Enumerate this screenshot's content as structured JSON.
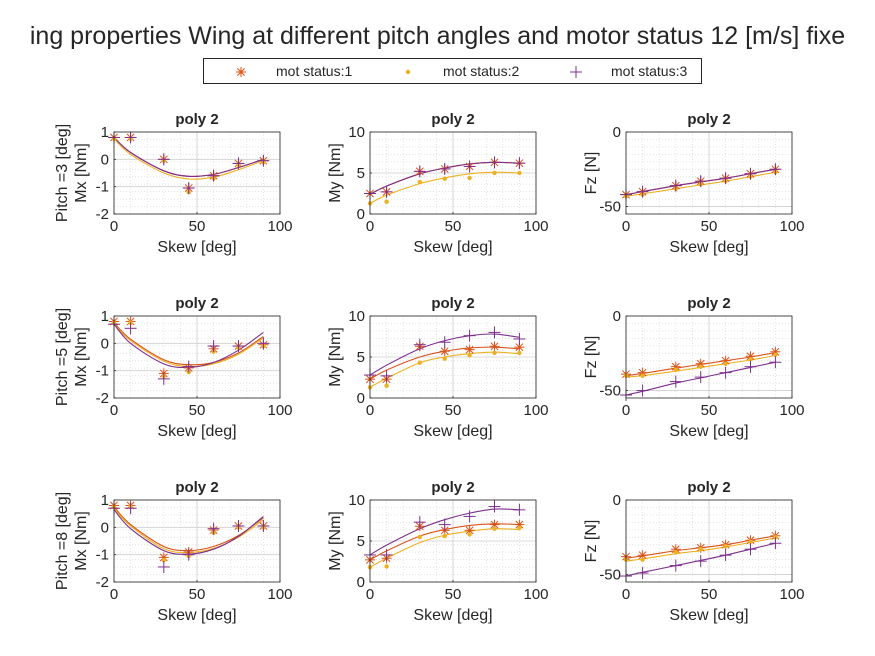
{
  "figure": {
    "title": "ing properties Wing at different pitch angles and motor status 12 [m/s] fixe"
  },
  "legend": {
    "entries": [
      "mot status:1",
      "mot status:2",
      "mot status:3"
    ]
  },
  "colors": {
    "mot_status_1": "#d95319",
    "mot_status_2": "#edb120",
    "mot_status_3": "#7e2f8e",
    "grid": "#d9d9d9",
    "axis": "#262626"
  },
  "markers": {
    "mot_status_1": "asterisk",
    "mot_status_2": "point",
    "mot_status_3": "plus"
  },
  "chart_data": [
    {
      "type": "scatter",
      "title": "poly 2",
      "xlabel": "Skew [deg]",
      "ylabel": "Pitch =3 [deg]\nMx [Nm]",
      "xlim": [
        0,
        100
      ],
      "ylim": [
        -2,
        1
      ],
      "xticks": [
        0,
        50,
        100
      ],
      "yticks": [
        -2,
        -1,
        0,
        1
      ],
      "x": [
        0,
        10,
        30,
        45,
        60,
        75,
        90
      ],
      "series": [
        {
          "name": "mot status:1",
          "values": [
            0.8,
            0.8,
            0,
            -1.05,
            -0.6,
            -0.15,
            -0.05
          ],
          "fit": [
            0.8,
            0.25,
            -0.42,
            -0.62,
            -0.55,
            -0.3,
            0.0
          ]
        },
        {
          "name": "mot status:2",
          "values": [
            0.75,
            0.75,
            -0.05,
            -1.2,
            -0.7,
            -0.2,
            -0.1
          ],
          "fit": [
            0.75,
            0.18,
            -0.5,
            -0.72,
            -0.65,
            -0.38,
            -0.05
          ]
        },
        {
          "name": "mot status:3",
          "values": [
            0.8,
            0.8,
            0,
            -1.05,
            -0.6,
            -0.15,
            -0.05
          ],
          "fit": [
            0.8,
            0.25,
            -0.42,
            -0.62,
            -0.55,
            -0.3,
            0.0
          ]
        }
      ]
    },
    {
      "type": "scatter",
      "title": "poly 2",
      "xlabel": "Skew [deg]",
      "ylabel": "My [Nm]",
      "xlim": [
        0,
        100
      ],
      "ylim": [
        0,
        10
      ],
      "xticks": [
        0,
        50,
        100
      ],
      "yticks": [
        0,
        5,
        10
      ],
      "x": [
        0,
        10,
        30,
        45,
        60,
        75,
        90
      ],
      "series": [
        {
          "name": "mot status:1",
          "values": [
            2.5,
            2.7,
            5.2,
            5.5,
            5.8,
            6.3,
            6.2
          ],
          "fit": [
            2.4,
            3.4,
            4.9,
            5.6,
            6.1,
            6.3,
            6.2
          ]
        },
        {
          "name": "mot status:2",
          "values": [
            1.3,
            1.5,
            3.9,
            4.3,
            4.4,
            5.0,
            5.0
          ],
          "fit": [
            1.3,
            2.3,
            3.7,
            4.4,
            4.9,
            5.1,
            5.0
          ]
        },
        {
          "name": "mot status:3",
          "values": [
            2.5,
            2.7,
            5.2,
            5.5,
            5.8,
            6.3,
            6.2
          ],
          "fit": [
            2.4,
            3.4,
            4.9,
            5.6,
            6.1,
            6.3,
            6.2
          ]
        }
      ]
    },
    {
      "type": "scatter",
      "title": "poly 2",
      "xlabel": "Skew [deg]",
      "ylabel": "Fz [N]",
      "xlim": [
        0,
        100
      ],
      "ylim": [
        -55,
        0
      ],
      "xticks": [
        0,
        50,
        100
      ],
      "yticks": [
        -50,
        0
      ],
      "ytick_labels": [
        "-50",
        "0"
      ],
      "x": [
        0,
        10,
        30,
        45,
        60,
        75,
        90
      ],
      "series": [
        {
          "name": "mot status:1",
          "values": [
            -42,
            -40,
            -36,
            -33,
            -31,
            -28,
            -25
          ],
          "fit": [
            -42,
            -40,
            -36,
            -33.5,
            -31,
            -28,
            -25
          ]
        },
        {
          "name": "mot status:2",
          "values": [
            -43,
            -42,
            -38,
            -35,
            -33,
            -30,
            -27
          ],
          "fit": [
            -43,
            -41.5,
            -38,
            -35.5,
            -33,
            -30,
            -27
          ]
        },
        {
          "name": "mot status:3",
          "values": [
            -42,
            -40,
            -36,
            -33,
            -31,
            -28,
            -25
          ],
          "fit": [
            -42,
            -40,
            -36,
            -33.5,
            -31,
            -28,
            -25
          ]
        }
      ]
    },
    {
      "type": "scatter",
      "title": "poly 2",
      "xlabel": "Skew [deg]",
      "ylabel": "Pitch =5 [deg]\nMx [Nm]",
      "xlim": [
        0,
        100
      ],
      "ylim": [
        -2,
        1
      ],
      "xticks": [
        0,
        50,
        100
      ],
      "yticks": [
        -2,
        -1,
        0,
        1
      ],
      "x": [
        0,
        10,
        30,
        45,
        60,
        75,
        90
      ],
      "series": [
        {
          "name": "mot status:1",
          "values": [
            0.8,
            0.8,
            -1.1,
            -0.9,
            -0.2,
            -0.1,
            -0.05
          ],
          "fit": [
            0.75,
            0.15,
            -0.6,
            -0.78,
            -0.7,
            -0.35,
            0.25
          ]
        },
        {
          "name": "mot status:2",
          "values": [
            0.75,
            0.75,
            -1.2,
            -1.05,
            -0.3,
            -0.15,
            -0.1
          ],
          "fit": [
            0.7,
            0.1,
            -0.65,
            -0.85,
            -0.75,
            -0.4,
            0.2
          ]
        },
        {
          "name": "mot status:3",
          "values": [
            0.7,
            0.55,
            -1.3,
            -0.85,
            -0.1,
            -0.1,
            0.0
          ],
          "fit": [
            0.7,
            0.0,
            -0.75,
            -0.88,
            -0.7,
            -0.25,
            0.4
          ]
        }
      ]
    },
    {
      "type": "scatter",
      "title": "poly 2",
      "xlabel": "Skew [deg]",
      "ylabel": "My [Nm]",
      "xlim": [
        0,
        100
      ],
      "ylim": [
        0,
        10
      ],
      "xticks": [
        0,
        50,
        100
      ],
      "yticks": [
        0,
        5,
        10
      ],
      "x": [
        0,
        10,
        30,
        45,
        60,
        75,
        90
      ],
      "series": [
        {
          "name": "mot status:1",
          "values": [
            2.3,
            2.3,
            6.3,
            5.7,
            5.9,
            6.3,
            6.2
          ],
          "fit": [
            2.3,
            3.4,
            5.0,
            5.7,
            6.1,
            6.2,
            6.0
          ]
        },
        {
          "name": "mot status:2",
          "values": [
            1.3,
            1.5,
            4.3,
            4.8,
            5.2,
            5.5,
            5.5
          ],
          "fit": [
            1.3,
            2.4,
            4.3,
            5.0,
            5.4,
            5.6,
            5.4
          ]
        },
        {
          "name": "mot status:3",
          "values": [
            2.8,
            2.7,
            6.5,
            6.8,
            7.6,
            8.0,
            7.2
          ],
          "fit": [
            2.8,
            4.0,
            6.0,
            7.0,
            7.6,
            7.8,
            7.4
          ]
        }
      ]
    },
    {
      "type": "scatter",
      "title": "poly 2",
      "xlabel": "Skew [deg]",
      "ylabel": "Fz [N]",
      "xlim": [
        0,
        100
      ],
      "ylim": [
        -55,
        0
      ],
      "xticks": [
        0,
        50,
        100
      ],
      "yticks": [
        -50,
        0
      ],
      "ytick_labels": [
        "-50",
        "0"
      ],
      "x": [
        0,
        10,
        30,
        45,
        60,
        75,
        90
      ],
      "series": [
        {
          "name": "mot status:1",
          "values": [
            -39,
            -38,
            -34,
            -32,
            -30,
            -27,
            -24
          ],
          "fit": [
            -40,
            -38.5,
            -35,
            -32.5,
            -30,
            -27.5,
            -24.5
          ]
        },
        {
          "name": "mot status:2",
          "values": [
            -40,
            -40,
            -36,
            -34,
            -32,
            -29,
            -26
          ],
          "fit": [
            -41,
            -40,
            -37,
            -34.5,
            -32,
            -29.5,
            -26.5
          ]
        },
        {
          "name": "mot status:3",
          "values": [
            -53,
            -50,
            -44,
            -41,
            -38,
            -34,
            -31
          ],
          "fit": [
            -53,
            -50.5,
            -45,
            -41.5,
            -38,
            -34.5,
            -31
          ]
        }
      ]
    },
    {
      "type": "scatter",
      "title": "poly 2",
      "xlabel": "Skew [deg]",
      "ylabel": "Pitch =8 [deg]\nMx [Nm]",
      "xlim": [
        0,
        100
      ],
      "ylim": [
        -2,
        1
      ],
      "xticks": [
        0,
        50,
        100
      ],
      "yticks": [
        -2,
        -1,
        0,
        1
      ],
      "x": [
        0,
        10,
        30,
        45,
        60,
        75,
        90
      ],
      "series": [
        {
          "name": "mot status:1",
          "values": [
            0.8,
            0.8,
            -1.1,
            -0.9,
            -0.1,
            0.05,
            0.05
          ],
          "fit": [
            0.75,
            0.1,
            -0.7,
            -0.85,
            -0.7,
            -0.3,
            0.35
          ]
        },
        {
          "name": "mot status:2",
          "values": [
            0.75,
            0.75,
            -1.2,
            -1.05,
            -0.2,
            0.0,
            0.0
          ],
          "fit": [
            0.7,
            0.05,
            -0.78,
            -0.92,
            -0.77,
            -0.36,
            0.28
          ]
        },
        {
          "name": "mot status:3",
          "values": [
            0.7,
            0.7,
            -1.45,
            -1.0,
            -0.05,
            0.05,
            0.05
          ],
          "fit": [
            0.65,
            -0.05,
            -0.85,
            -0.98,
            -0.8,
            -0.33,
            0.4
          ]
        }
      ]
    },
    {
      "type": "scatter",
      "title": "poly 2",
      "xlabel": "Skew [deg]",
      "ylabel": "My [Nm]",
      "xlim": [
        0,
        100
      ],
      "ylim": [
        0,
        10
      ],
      "xticks": [
        0,
        50,
        100
      ],
      "yticks": [
        0,
        5,
        10
      ],
      "x": [
        0,
        10,
        30,
        45,
        60,
        75,
        90
      ],
      "series": [
        {
          "name": "mot status:1",
          "values": [
            2.7,
            2.9,
            6.8,
            6.3,
            6.3,
            7.0,
            7.0
          ],
          "fit": [
            2.7,
            3.8,
            5.6,
            6.4,
            6.9,
            7.1,
            7.0
          ]
        },
        {
          "name": "mot status:2",
          "values": [
            1.8,
            1.9,
            5.5,
            5.6,
            5.8,
            6.5,
            6.6
          ],
          "fit": [
            1.8,
            2.9,
            4.8,
            5.7,
            6.2,
            6.5,
            6.4
          ]
        },
        {
          "name": "mot status:3",
          "values": [
            3.3,
            3.3,
            7.3,
            7.0,
            8.0,
            9.2,
            8.8
          ],
          "fit": [
            3.3,
            4.5,
            6.5,
            7.6,
            8.4,
            8.9,
            8.8
          ]
        }
      ]
    },
    {
      "type": "scatter",
      "title": "poly 2",
      "xlabel": "Skew [deg]",
      "ylabel": "Fz [N]",
      "xlim": [
        0,
        100
      ],
      "ylim": [
        -55,
        0
      ],
      "xticks": [
        0,
        50,
        100
      ],
      "yticks": [
        -50,
        0
      ],
      "ytick_labels": [
        "-50",
        "0"
      ],
      "x": [
        0,
        10,
        30,
        45,
        60,
        75,
        90
      ],
      "series": [
        {
          "name": "mot status:1",
          "values": [
            -38,
            -37,
            -33,
            -32,
            -30,
            -27,
            -24
          ],
          "fit": [
            -39,
            -37.5,
            -34,
            -32,
            -30,
            -27,
            -24
          ]
        },
        {
          "name": "mot status:2",
          "values": [
            -40,
            -40,
            -35,
            -33,
            -31,
            -28,
            -25
          ],
          "fit": [
            -41,
            -39.5,
            -36,
            -34,
            -31.5,
            -28.5,
            -25.5
          ]
        },
        {
          "name": "mot status:3",
          "values": [
            -51,
            -49,
            -44,
            -41,
            -37,
            -33,
            -29
          ],
          "fit": [
            -51,
            -48.5,
            -44,
            -40.5,
            -37,
            -33,
            -29
          ]
        }
      ]
    }
  ]
}
